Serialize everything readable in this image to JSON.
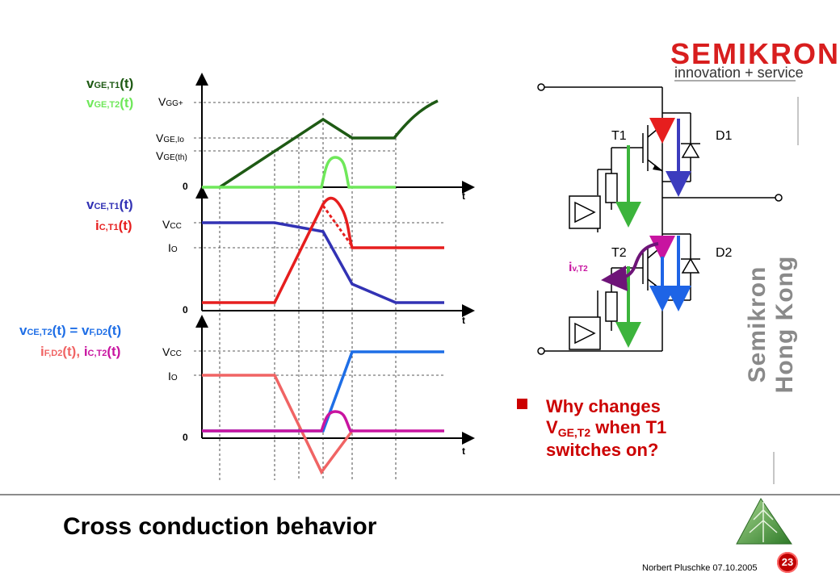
{
  "slide": {
    "title": "Cross conduction behavior",
    "footer_text": "Norbert Pluschke 07.10.2005",
    "page_number": "23",
    "side_brand": "Semikron Hong Kong",
    "logo": {
      "word": "SEMIKRON",
      "tagline": "innovation + service"
    }
  },
  "bullet": {
    "marker": "n",
    "line1": "Why changes",
    "line2_main": "V",
    "line2_sub": "GE,T2",
    "line2_rest": " when T1",
    "line3": "switches on?"
  },
  "waveforms": {
    "panel1": {
      "labels": [
        {
          "main": "v",
          "sub": "GE,T1",
          "tail": "(t)",
          "color": "#1e5a14"
        },
        {
          "main": "v",
          "sub": "GE,T2",
          "tail": "(t)",
          "color": "#6fe85a"
        }
      ],
      "levels": [
        {
          "main": "V",
          "sub": "GG+"
        },
        {
          "main": "V",
          "sub": "GE,Io"
        },
        {
          "main": "V",
          "sub": "GE(th)"
        }
      ],
      "zero": "0",
      "axis": "t"
    },
    "panel2": {
      "labels": [
        {
          "main": "v",
          "sub": "CE,T1",
          "tail": "(t)",
          "color": "#3232b4"
        },
        {
          "main": "i",
          "sub": "C,T1",
          "tail": "(t)",
          "color": "#e61e1e"
        }
      ],
      "levels": [
        {
          "main": "V",
          "sub": "CC"
        },
        {
          "main": "I",
          "sub": "O"
        }
      ],
      "zero": "0",
      "axis": "t"
    },
    "panel3": {
      "label_line1": [
        {
          "main": "v",
          "sub": "CE,T2",
          "tail": "(t)",
          "color": "#1e6ee6"
        },
        {
          "main": "",
          "sub": "",
          "tail": "=",
          "color": "#1e6ee6"
        },
        {
          "main": "v",
          "sub": "F,D2",
          "tail": "(t)",
          "color": "#1e6ee6"
        }
      ],
      "label_line2": [
        {
          "main": "i",
          "sub": "F,D2",
          "tail": "(t),",
          "color": "#f06464"
        },
        {
          "main": "i",
          "sub": "C,T2",
          "tail": "(t)",
          "color": "#c814a0"
        }
      ],
      "levels": [
        {
          "main": "V",
          "sub": "CC"
        },
        {
          "main": "I",
          "sub": "O"
        }
      ],
      "zero": "0",
      "axis": "t"
    }
  },
  "circuit": {
    "t1": "T1",
    "d1": "D1",
    "t2": "T2",
    "d2": "D2",
    "current_label": {
      "main": "i",
      "sub": "v,T2"
    }
  },
  "colors": {
    "vge_t1": "#1e5a14",
    "vge_t2": "#6fe85a",
    "vce_t1": "#3232b4",
    "ic_t1": "#e61e1e",
    "vce_t2": "#1e6ee6",
    "if_d2": "#f06464",
    "ic_t2": "#c814a0",
    "iv_t2": "#6e1478",
    "accent_red": "#cc0000"
  }
}
